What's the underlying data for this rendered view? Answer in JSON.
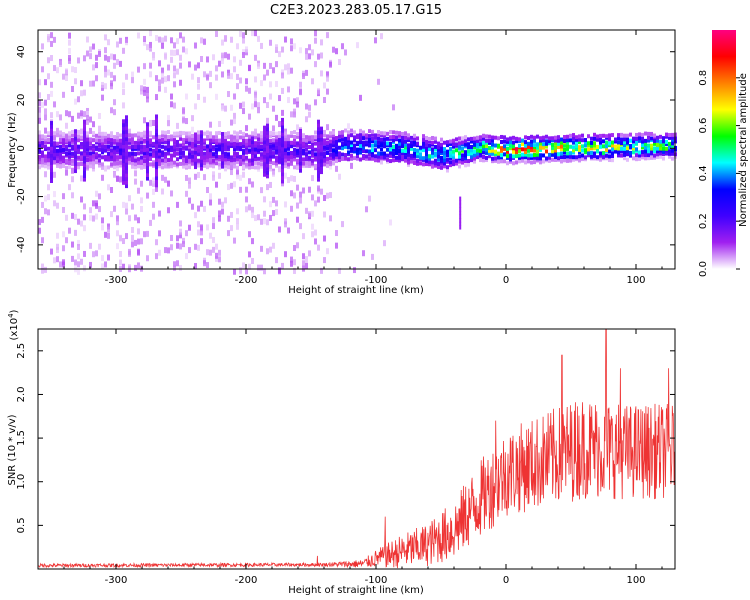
{
  "title": "C2E3.2023.283.05.17.G15",
  "chart_data": [
    {
      "type": "heatmap",
      "xlabel": "Height of straight line (km)",
      "ylabel": "Frequency (Hz)",
      "xlim": [
        -360,
        130
      ],
      "ylim": [
        -50,
        49
      ],
      "xticks": [
        -300,
        -200,
        -100,
        0,
        100
      ],
      "xtick_labels": [
        "-300",
        "-200",
        "-100",
        "0",
        "100"
      ],
      "yticks": [
        -40,
        -20,
        0,
        20,
        40
      ],
      "ytick_labels": [
        "-40",
        "-20",
        "0",
        "20",
        "40"
      ],
      "colorbar": {
        "label": "Normalized spectral amplitude",
        "range": [
          0,
          1
        ],
        "ticks": [
          0.0,
          0.2,
          0.4,
          0.6,
          0.8
        ],
        "tick_labels": [
          "0.0",
          "0.2",
          "0.4",
          "0.6",
          "0.8"
        ],
        "colors": [
          "#ffffff",
          "#a020f0",
          "#3f00ff",
          "#0000ff",
          "#00ffff",
          "#00ff00",
          "#ffff00",
          "#ff8000",
          "#ff0000",
          "#ff0080"
        ]
      },
      "band": {
        "description_points": [
          {
            "height": -360,
            "center": 0,
            "halfwidth": 6,
            "amp": 0.2,
            "scatter": 0.3
          },
          {
            "height": -140,
            "center": 0,
            "halfwidth": 6,
            "amp": 0.22,
            "scatter": 0.3
          },
          {
            "height": -125,
            "center": 2,
            "halfwidth": 5,
            "amp": 0.38,
            "scatter": 0.05
          },
          {
            "height": -80,
            "center": 1,
            "halfwidth": 5,
            "amp": 0.45,
            "scatter": 0.03
          },
          {
            "height": -50,
            "center": -2,
            "halfwidth": 5,
            "amp": 0.45,
            "scatter": 0.02
          },
          {
            "height": -20,
            "center": 1,
            "halfwidth": 4,
            "amp": 0.55,
            "scatter": 0.01
          },
          {
            "height": 0,
            "center": 0,
            "halfwidth": 4,
            "amp": 0.85,
            "scatter": 0.01
          },
          {
            "height": 50,
            "center": 1,
            "halfwidth": 4,
            "amp": 0.7,
            "scatter": 0.01
          },
          {
            "height": 130,
            "center": 2,
            "halfwidth": 4,
            "amp": 0.5,
            "scatter": 0.01
          }
        ]
      }
    },
    {
      "type": "line",
      "xlabel": "Height of straight line (km)",
      "ylabel": "SNR (10 * v/v)",
      "y_multiplier": "(x10",
      "y_multiplier_exp": "4",
      "y_multiplier_close": ")",
      "xlim": [
        -360,
        130
      ],
      "ylim": [
        0,
        2.75
      ],
      "xticks": [
        -300,
        -200,
        -100,
        0,
        100
      ],
      "xtick_labels": [
        "-300",
        "-200",
        "-100",
        "0",
        "100"
      ],
      "yticks": [
        0.5,
        1.0,
        1.5,
        2.0,
        2.5
      ],
      "ytick_labels": [
        "0.5",
        "1.0",
        "1.5",
        "2.0",
        "2.5"
      ],
      "series": [
        {
          "name": "SNR",
          "color": "#ee3333",
          "envelope": [
            {
              "x": -360,
              "base": 0.04,
              "noise": 0.02
            },
            {
              "x": -140,
              "base": 0.05,
              "noise": 0.02
            },
            {
              "x": -110,
              "base": 0.06,
              "noise": 0.05
            },
            {
              "x": -100,
              "base": 0.12,
              "noise": 0.1
            },
            {
              "x": -80,
              "base": 0.2,
              "noise": 0.2
            },
            {
              "x": -60,
              "base": 0.28,
              "noise": 0.25
            },
            {
              "x": -40,
              "base": 0.45,
              "noise": 0.35
            },
            {
              "x": -20,
              "base": 0.8,
              "noise": 0.45
            },
            {
              "x": 0,
              "base": 1.1,
              "noise": 0.5
            },
            {
              "x": 30,
              "base": 1.25,
              "noise": 0.55
            },
            {
              "x": 60,
              "base": 1.4,
              "noise": 0.6
            },
            {
              "x": 90,
              "base": 1.35,
              "noise": 0.55
            },
            {
              "x": 130,
              "base": 1.35,
              "noise": 0.55
            }
          ],
          "peaks": [
            {
              "x": 77,
              "y": 2.75
            },
            {
              "x": 43,
              "y": 2.45
            },
            {
              "x": 88,
              "y": 2.3
            },
            {
              "x": 125,
              "y": 2.3
            },
            {
              "x": -8,
              "y": 1.7
            },
            {
              "x": -93,
              "y": 0.6
            },
            {
              "x": -145,
              "y": 0.15
            }
          ]
        }
      ]
    }
  ]
}
